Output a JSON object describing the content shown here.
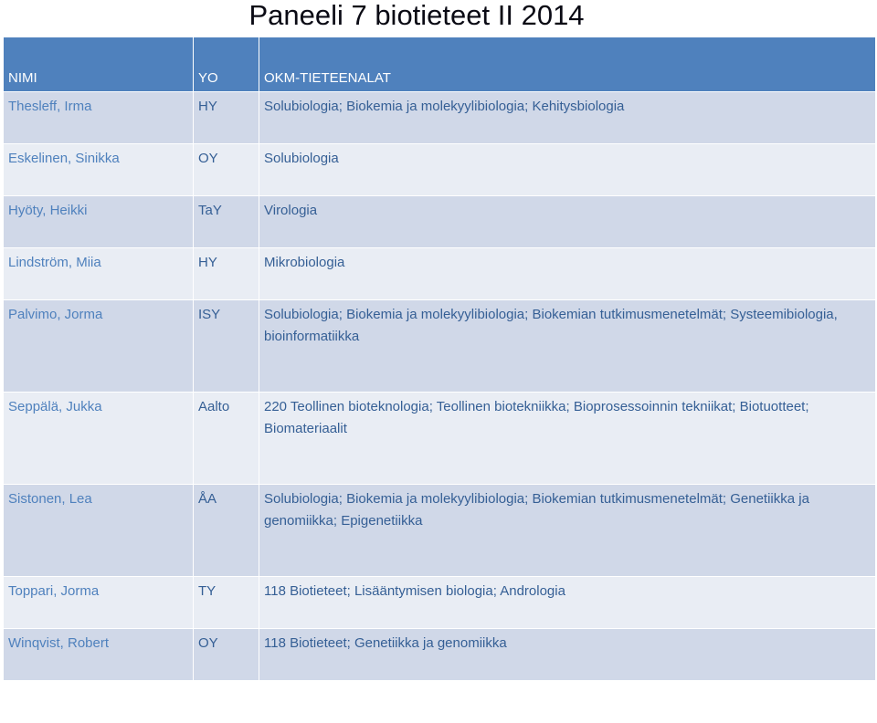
{
  "document": {
    "title": "Paneeli 7 biotieteet II  2014"
  },
  "table": {
    "headers": {
      "name": "NIMI",
      "yo": "YO",
      "field": "OKM-TIETEENALAT"
    },
    "rows": [
      {
        "name": "Thesleff, Irma",
        "yo": "HY",
        "field": "Solubiologia; Biokemia ja molekyylibiologia; Kehitysbiologia"
      },
      {
        "name": "Eskelinen, Sinikka",
        "yo": "OY",
        "field": "Solubiologia"
      },
      {
        "name": "Hyöty, Heikki",
        "yo": "TaY",
        "field": "Virologia"
      },
      {
        "name": "Lindström, Miia",
        "yo": "HY",
        "field": "Mikrobiologia"
      },
      {
        "name": "Palvimo, Jorma",
        "yo": "ISY",
        "field": "Solubiologia; Biokemia ja molekyylibiologia; Biokemian tutkimusmenetelmät; Systeemibiologia, bioinformatiikka"
      },
      {
        "name": "Seppälä, Jukka",
        "yo": "Aalto",
        "field": "220 Teollinen bioteknologia; Teollinen biotekniikka; Bioprosessoinnin tekniikat; Biotuotteet; Biomateriaalit"
      },
      {
        "name": "Sistonen, Lea",
        "yo": "ÅA",
        "field": "Solubiologia; Biokemia ja molekyylibiologia; Biokemian tutkimusmenetelmät; Genetiikka ja genomiikka; Epigenetiikka"
      },
      {
        "name": "Toppari, Jorma",
        "yo": "TY",
        "field": "118 Biotieteet; Lisääntymisen biologia; Andrologia"
      },
      {
        "name": "Winqvist, Robert",
        "yo": "OY",
        "field": "118 Biotieteet; Genetiikka ja genomiikka"
      }
    ]
  }
}
